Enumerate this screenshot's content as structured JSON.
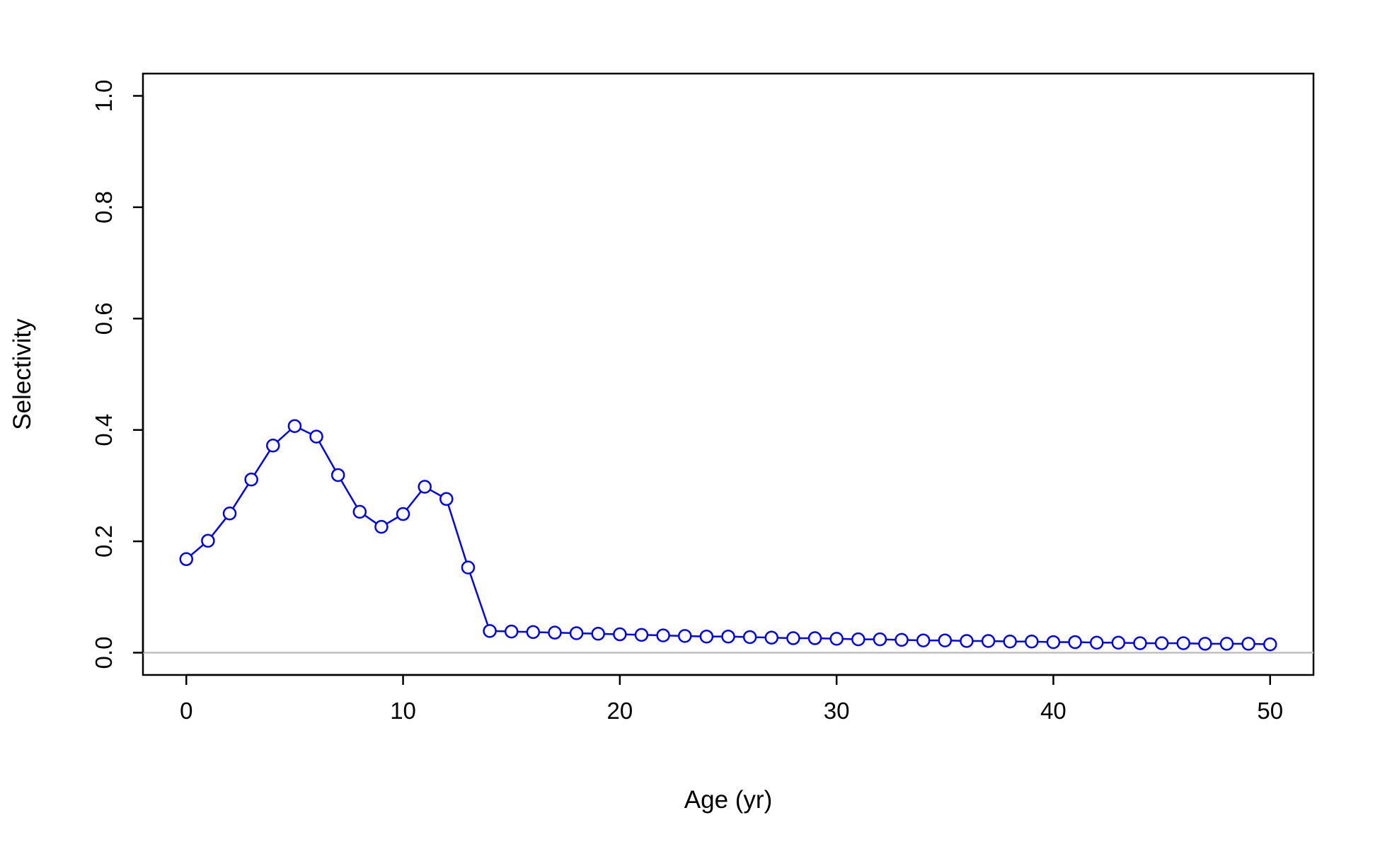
{
  "chart_data": {
    "type": "line",
    "xlabel": "Age (yr)",
    "ylabel": "Selectivity",
    "xlim": [
      -2,
      52
    ],
    "ylim": [
      -0.04,
      1.04
    ],
    "x_ticks": [
      0,
      10,
      20,
      30,
      40,
      50
    ],
    "y_ticks": [
      0.0,
      0.2,
      0.4,
      0.6,
      0.8,
      1.0
    ],
    "y_tick_labels": [
      "0.0",
      "0.2",
      "0.4",
      "0.6",
      "0.8",
      "1.0"
    ],
    "grid": false,
    "reference_line": {
      "y": 0,
      "color": "#bebebe"
    },
    "series": [
      {
        "color": "#0000ff",
        "marker": "open-circle",
        "x": [
          0,
          1,
          2,
          3,
          4,
          5,
          6,
          7,
          8,
          9,
          10,
          11,
          12,
          13,
          14,
          15,
          16,
          17,
          18,
          19,
          20,
          21,
          22,
          23,
          24,
          25,
          26,
          27,
          28,
          29,
          30,
          31,
          32,
          33,
          34,
          35,
          36,
          37,
          38,
          39,
          40,
          41,
          42,
          43,
          44,
          45,
          46,
          47,
          48,
          49,
          50
        ],
        "values": [
          0.168,
          0.201,
          0.25,
          0.311,
          0.372,
          0.407,
          0.388,
          0.319,
          0.253,
          0.226,
          0.249,
          0.298,
          0.276,
          0.153,
          0.039,
          0.038,
          0.037,
          0.036,
          0.035,
          0.034,
          0.033,
          0.032,
          0.031,
          0.03,
          0.029,
          0.029,
          0.028,
          0.027,
          0.026,
          0.026,
          0.025,
          0.024,
          0.024,
          0.023,
          0.022,
          0.022,
          0.021,
          0.021,
          0.02,
          0.02,
          0.019,
          0.019,
          0.018,
          0.018,
          0.017,
          0.017,
          0.017,
          0.016,
          0.016,
          0.016,
          0.015
        ]
      }
    ]
  }
}
